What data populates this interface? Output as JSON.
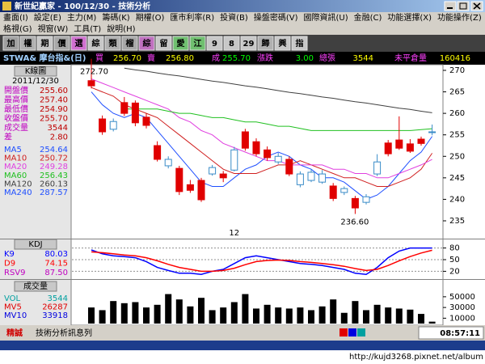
{
  "window": {
    "title": "新世紀贏家 - 100/12/30 - 技術分析"
  },
  "menu": {
    "row1": [
      "畫面(I)",
      "設定(E)",
      "主力(M)",
      "籌碼(K)",
      "期權(O)",
      "匯市利率(R)",
      "投資(B)",
      "操盤密碼(V)",
      "國際資訊(U)",
      "金融(C)",
      "功能選擇(X)",
      "功能操作(Z)"
    ],
    "row2": [
      "格視(G)",
      "視窗(W)",
      "工具(T)",
      "說明(H)"
    ]
  },
  "toolbar": [
    "加",
    "權",
    "期",
    "價",
    "選",
    "綜",
    "類",
    "榴",
    "綜",
    "留",
    "愛",
    "江",
    "9",
    "8",
    "29",
    "歸",
    "興",
    "指"
  ],
  "quote": {
    "symbol": "STWA& 摩台指&(日)",
    "items": [
      {
        "label": "買",
        "value": "256.70"
      },
      {
        "label": "賣",
        "value": "256.80"
      },
      {
        "label": "成",
        "value": "255.70"
      },
      {
        "label": "漲跌",
        "value": "3.00"
      },
      {
        "label": "總張",
        "value": "3544"
      },
      {
        "label": "未平倉量",
        "value": "160416"
      }
    ]
  },
  "chart_data": [
    {
      "type": "candlestick",
      "title": "K線圖",
      "date": "2011/12/30",
      "info": [
        {
          "label": "開盤價",
          "value": "255.60"
        },
        {
          "label": "最高價",
          "value": "257.40"
        },
        {
          "label": "最低價",
          "value": "254.90"
        },
        {
          "label": "收盤價",
          "value": "255.70"
        },
        {
          "label": "成交量",
          "value": "3544"
        },
        {
          "label": "差",
          "value": "2.80"
        }
      ],
      "categories": [
        null,
        null,
        null,
        null,
        null,
        null,
        null,
        null,
        null,
        null,
        null,
        null,
        null,
        "12",
        null,
        null,
        null,
        null,
        null,
        null,
        null,
        null,
        null,
        null,
        null,
        null,
        null,
        null,
        null,
        null,
        null,
        null
      ],
      "open": [
        267.6,
        258.7,
        256.3,
        262.5,
        262.4,
        259.1,
        252.5,
        247.8,
        247.2,
        243.4,
        244.4,
        245.9,
        245.9,
        246.8,
        255.7,
        253.4,
        251.5,
        248.7,
        249.3,
        243.4,
        244.4,
        244.0,
        243.1,
        241.6,
        240.2,
        239.3,
        245.9,
        253.1,
        253.8,
        252.9,
        254.0,
        255.6
      ],
      "high": [
        272.7,
        259.5,
        258.8,
        263.8,
        263.0,
        260.0,
        253.5,
        250.0,
        247.8,
        244.5,
        245.0,
        248.0,
        246.6,
        252.2,
        256.4,
        254.2,
        252.3,
        250.8,
        250.0,
        246.5,
        247.0,
        246.8,
        243.8,
        243.0,
        240.8,
        241.2,
        250.5,
        253.8,
        259.3,
        254.0,
        254.6,
        257.4
      ],
      "low": [
        265.8,
        255.0,
        255.8,
        259.4,
        257.0,
        256.5,
        248.8,
        247.2,
        241.0,
        241.5,
        239.4,
        245.5,
        244.0,
        246.5,
        251.3,
        250.0,
        249.0,
        248.2,
        245.4,
        242.8,
        244.0,
        243.6,
        239.6,
        241.0,
        236.6,
        238.8,
        245.4,
        250.0,
        251.5,
        250.8,
        252.5,
        254.9
      ],
      "close": [
        266.4,
        255.7,
        258.1,
        260.0,
        257.8,
        257.2,
        249.3,
        249.3,
        241.8,
        242.1,
        239.9,
        247.4,
        245.0,
        251.5,
        251.9,
        250.6,
        249.7,
        250.0,
        245.9,
        245.9,
        246.3,
        245.9,
        240.2,
        242.5,
        238.0,
        240.6,
        248.7,
        250.6,
        251.9,
        251.2,
        253.0,
        255.7
      ],
      "up_color": "#3a8cc8",
      "down_color": "#e00000",
      "high_label": "272.70",
      "low_label": "236.60",
      "series": [
        {
          "name": "MA5",
          "color": "#1f4fff",
          "value_label": "254.64",
          "values": [
            265,
            262,
            260,
            259,
            260,
            259,
            256,
            253,
            250,
            247,
            244,
            243,
            243,
            245,
            247,
            248,
            250,
            251,
            250,
            248,
            247,
            245,
            245,
            244,
            242,
            240,
            241,
            243,
            246,
            249,
            251,
            254.64
          ]
        },
        {
          "name": "MA10",
          "color": "#d02020",
          "value_label": "250.72",
          "values": [
            266,
            265,
            264,
            262,
            261,
            260,
            259,
            257,
            255,
            253,
            251,
            249,
            247,
            246,
            246,
            246,
            247,
            248,
            248,
            249,
            248,
            247,
            246,
            245,
            245,
            244,
            243,
            243,
            244,
            245,
            247,
            250.72
          ]
        },
        {
          "name": "MA20",
          "color": "#e040e0",
          "value_label": "249.28",
          "values": [
            268,
            267,
            266,
            265,
            264,
            263,
            262,
            261,
            259,
            258,
            256,
            255,
            253,
            252,
            251,
            250,
            249,
            249,
            248,
            248,
            248,
            248,
            247,
            247,
            246,
            246,
            245,
            245,
            246,
            247,
            248,
            249.28
          ]
        },
        {
          "name": "MA60",
          "color": "#20c020",
          "value_label": "256.43",
          "values": [
            null,
            null,
            null,
            261,
            261,
            261,
            261,
            260.5,
            260,
            260,
            259.5,
            259,
            259,
            258.5,
            258,
            258,
            257.5,
            257,
            257,
            256.5,
            256,
            256,
            256,
            256,
            256,
            256,
            256,
            256,
            256,
            256,
            256.2,
            256.43
          ]
        },
        {
          "name": "MA120",
          "color": "#404040",
          "value_label": "260.13",
          "values": [
            null,
            null,
            null,
            270.5,
            270.1,
            269.8,
            269.4,
            269.0,
            268.7,
            268.3,
            267.9,
            267.5,
            267.2,
            266.8,
            266.4,
            266.1,
            265.7,
            265.3,
            264.9,
            264.6,
            264.2,
            263.8,
            263.5,
            263.1,
            262.7,
            262.4,
            262.0,
            261.6,
            261.2,
            260.9,
            260.5,
            260.13
          ]
        },
        {
          "name": "MA240",
          "color": "#1f4fff",
          "value_label": "287.57"
        }
      ],
      "ylim": [
        231.5,
        271.2
      ],
      "yticks": [
        235,
        240,
        245,
        250,
        255,
        260,
        265,
        270
      ]
    },
    {
      "type": "line",
      "title": "KDJ",
      "series": [
        {
          "name": "K9",
          "color": "#0000ff",
          "value_label": "80.03",
          "values": [
            75,
            65,
            60,
            58,
            55,
            45,
            30,
            22,
            15,
            15,
            12,
            20,
            25,
            40,
            55,
            60,
            55,
            50,
            45,
            40,
            38,
            35,
            30,
            25,
            15,
            12,
            30,
            55,
            72,
            80,
            80,
            80.03
          ]
        },
        {
          "name": "D9",
          "color": "#ff0000",
          "value_label": "74.15",
          "values": [
            70,
            68,
            65,
            62,
            60,
            55,
            47,
            38,
            30,
            25,
            20,
            20,
            22,
            28,
            37,
            45,
            48,
            49,
            48,
            45,
            43,
            40,
            37,
            33,
            27,
            22,
            25,
            35,
            47,
            58,
            67,
            74.15
          ]
        },
        {
          "name": "RSV9",
          "color": "#c000c0",
          "value_label": "87.50"
        }
      ],
      "ylim": [
        0,
        100
      ],
      "yticks": [
        20,
        50,
        80
      ],
      "grid": true
    },
    {
      "type": "bar",
      "title": "成交量",
      "color": "#000000",
      "values": [
        30000,
        25000,
        42000,
        38000,
        40000,
        30000,
        35000,
        55000,
        45000,
        32000,
        48000,
        25000,
        30000,
        40000,
        55000,
        28000,
        35000,
        30000,
        28000,
        30000,
        25000,
        32000,
        45000,
        20000,
        42000,
        25000,
        35000,
        30000,
        28000,
        26000,
        18000,
        3544
      ],
      "legend": [
        {
          "name": "VOL",
          "color": "#00a0a0",
          "value_label": "3544"
        },
        {
          "name": "MV5",
          "color": "#e00000",
          "value_label": "26287"
        },
        {
          "name": "MV10",
          "color": "#0000e0",
          "value_label": "33918"
        }
      ],
      "ylim": [
        0,
        80000
      ],
      "yticks": [
        10000,
        30000,
        50000
      ]
    }
  ],
  "status": {
    "brand": "精誠",
    "message": "技術分析訊息列",
    "time": "08:57:11"
  },
  "watermark": "http://kujd3268.pixnet.net/album"
}
